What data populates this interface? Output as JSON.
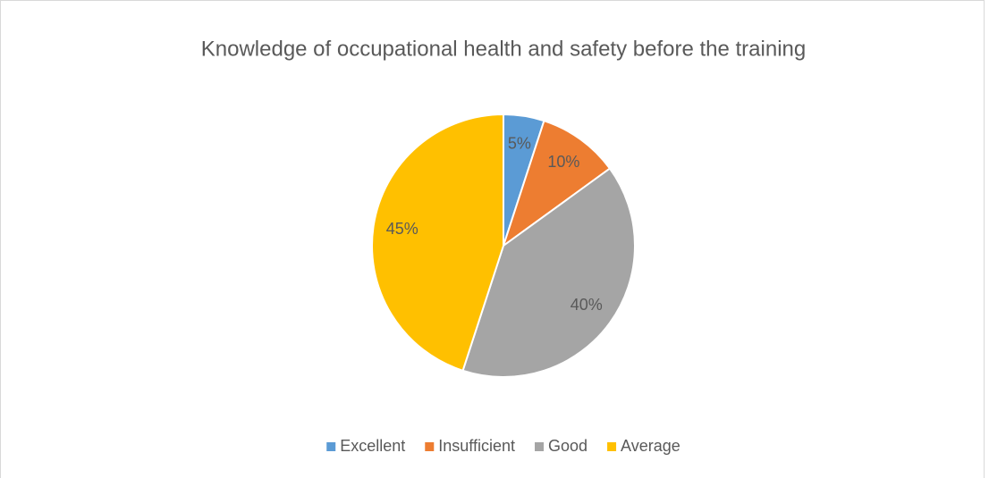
{
  "chart_data": {
    "type": "pie",
    "title": "Knowledge of occupational health and safety before the training",
    "categories": [
      "Excellent",
      "Insufficient",
      "Good",
      "Average"
    ],
    "values": [
      5,
      10,
      40,
      45
    ],
    "value_labels": [
      "5%",
      "10%",
      "40%",
      "45%"
    ],
    "colors": [
      "#5b9bd5",
      "#ed7d31",
      "#a5a5a5",
      "#ffc000"
    ],
    "legend": "bottom"
  }
}
